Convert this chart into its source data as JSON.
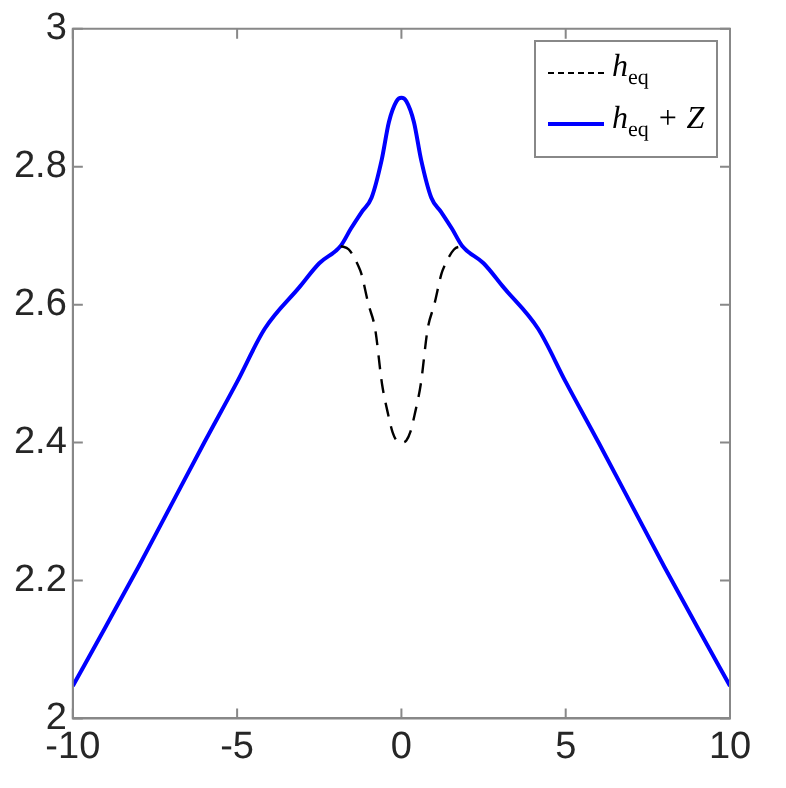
{
  "chart_data": {
    "type": "line",
    "xlim": [
      -10,
      10
    ],
    "xticks": [
      -10,
      -5,
      0,
      5,
      10
    ],
    "ylim": [
      2,
      3
    ],
    "yticks": [
      2,
      2.2,
      2.4,
      2.6,
      2.8,
      3
    ],
    "grid": false,
    "legend": "top right",
    "marker": "none",
    "series": [
      {
        "name": "h$_{eq}$",
        "color": "#000000",
        "line_style": "dashed",
        "x": [
          -1.85,
          -1.6,
          -1.3,
          -1.22,
          -1.0,
          -0.8,
          -0.59,
          -0.4,
          -0.27,
          -0.15,
          0,
          0.15,
          0.27,
          0.4,
          0.59,
          0.8,
          1.0,
          1.22,
          1.3,
          1.6,
          1.85
        ],
        "values": [
          2.685,
          2.68,
          2.655,
          2.645,
          2.6,
          2.565,
          2.485,
          2.44,
          2.415,
          2.403,
          2.4,
          2.403,
          2.415,
          2.44,
          2.485,
          2.565,
          2.6,
          2.645,
          2.655,
          2.68,
          2.685
        ]
      },
      {
        "name": "h$_{eq}$ + Z",
        "color": "#0000ff",
        "line_style": "solid",
        "x": [
          -10,
          -9,
          -8,
          -7,
          -6,
          -5,
          -4.16,
          -3.11,
          -2.5,
          -1.85,
          -1.54,
          -1.2,
          -0.91,
          -0.6,
          -0.38,
          -0.15,
          0,
          0.15,
          0.38,
          0.6,
          0.91,
          1.2,
          1.54,
          1.85,
          2.5,
          3.11,
          4.16,
          5,
          6,
          7,
          8,
          9,
          10
        ],
        "values": [
          2.047,
          2.133,
          2.22,
          2.31,
          2.4,
          2.488,
          2.565,
          2.625,
          2.66,
          2.685,
          2.71,
          2.735,
          2.755,
          2.81,
          2.865,
          2.895,
          2.9,
          2.895,
          2.865,
          2.81,
          2.755,
          2.735,
          2.71,
          2.685,
          2.66,
          2.625,
          2.565,
          2.488,
          2.4,
          2.31,
          2.22,
          2.133,
          2.047
        ]
      }
    ]
  }
}
